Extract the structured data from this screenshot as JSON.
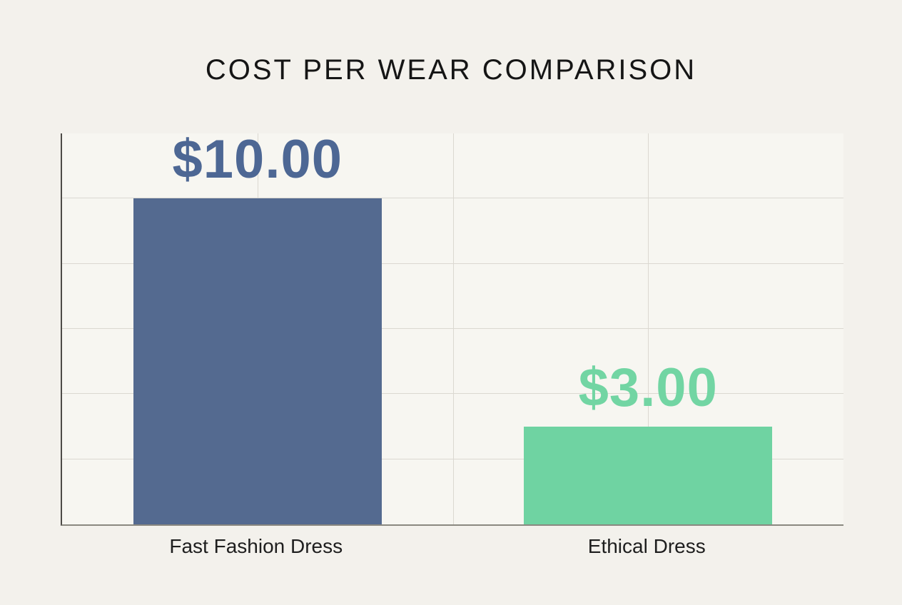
{
  "chart_data": {
    "type": "bar",
    "title": "COST PER WEAR COMPARISON",
    "categories": [
      "Fast Fashion Dress",
      "Ethical Dress"
    ],
    "values": [
      10,
      3
    ],
    "value_labels": [
      "$10.00",
      "$3.00"
    ],
    "xlabel": "",
    "ylabel": "",
    "ylim": [
      0,
      12
    ],
    "y_gridlines": [
      2,
      4,
      6,
      8,
      10
    ],
    "x_gridlines_pct": [
      25,
      50,
      75
    ],
    "bar_center_pct": [
      25,
      75
    ],
    "legend": "none",
    "grid": true,
    "colors": {
      "bar_colors": [
        "#546a90",
        "#6fd3a2"
      ],
      "value_label_colors": [
        "#4d6794",
        "#72d5a3"
      ],
      "page_background": "#f3f1ec",
      "plot_background": "#f7f6f1",
      "gridline": "#dbd8d1",
      "y_axis_line": "#4d4b47",
      "x_axis_line": "#8a8880",
      "title_color": "#151515",
      "category_label_color": "#1e1e1e"
    }
  }
}
